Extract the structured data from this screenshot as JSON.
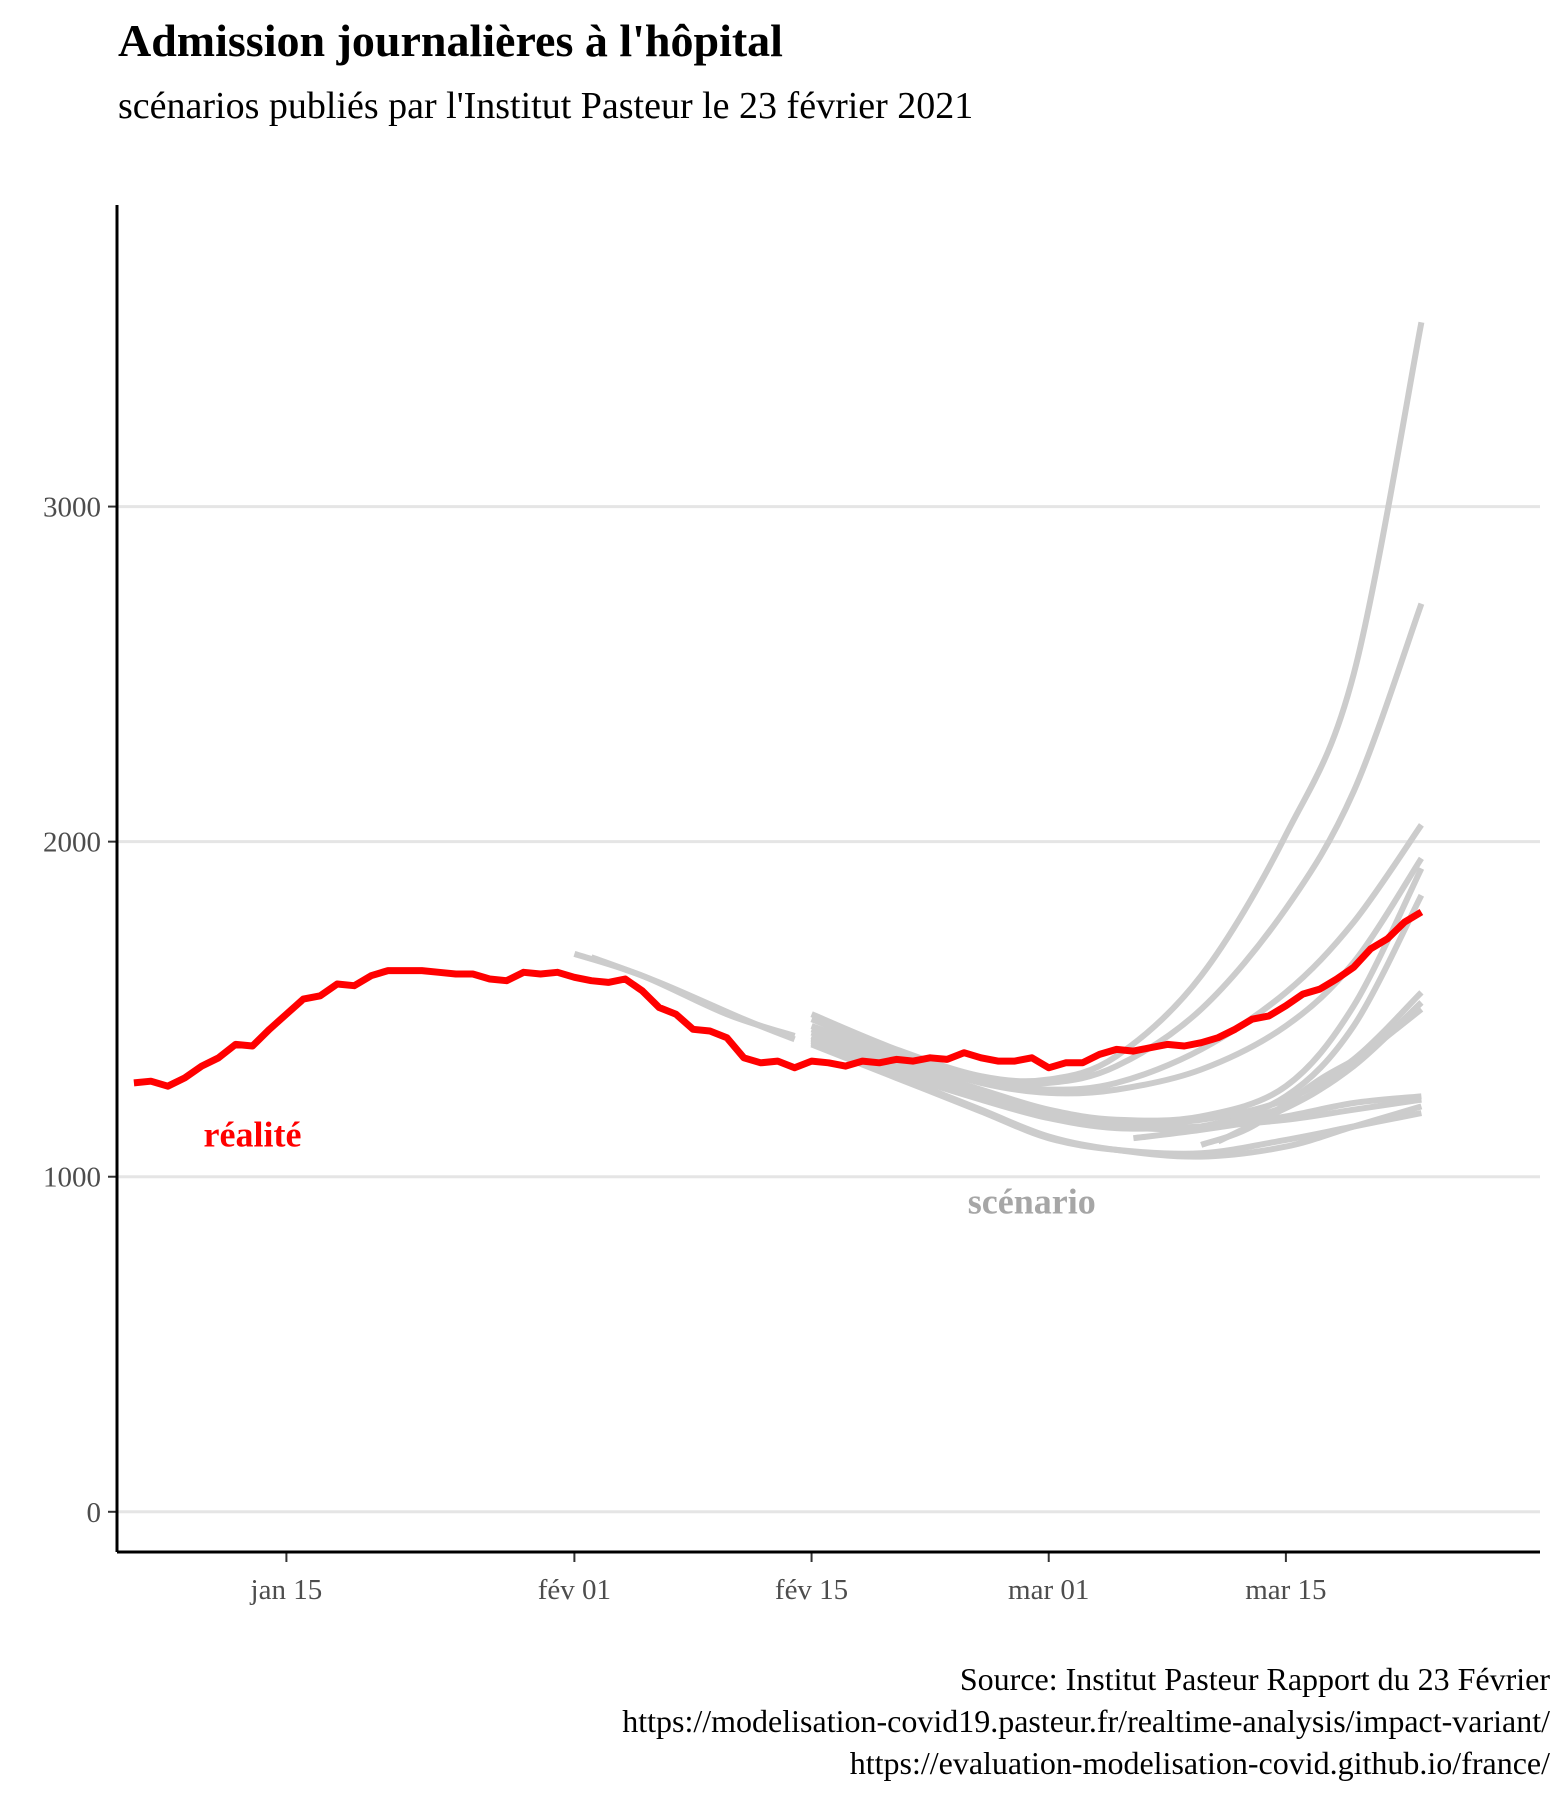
{
  "title": "Admission journalières à l'hôpital",
  "subtitle": "scénarios publiés par l'Institut Pasteur le 23 février 2021",
  "caption": [
    "Source: Institut Pasteur Rapport du 23 Février",
    "https://modelisation-covid19.pasteur.fr/realtime-analysis/impact-variant/",
    "https://evaluation-modelisation-covid.github.io/france/"
  ],
  "colors": {
    "reality": "#ff0000",
    "scenario": "#cccccc",
    "scenario_label": "#a6a6a6",
    "grid": "#e5e5e5",
    "axis": "#000000"
  },
  "chart_data": {
    "type": "line",
    "title": "Admission journalières à l'hôpital",
    "subtitle": "scénarios publiés par l'Institut Pasteur le 23 février 2021",
    "xlabel": "",
    "ylabel": "",
    "x_type": "date",
    "xlim": [
      "2021-01-05",
      "2021-03-30"
    ],
    "ylim": [
      -120,
      3900
    ],
    "x_ticks": [
      {
        "date": "2021-01-15",
        "label": "jan 15"
      },
      {
        "date": "2021-02-01",
        "label": "fév 01"
      },
      {
        "date": "2021-02-15",
        "label": "fév 15"
      },
      {
        "date": "2021-03-01",
        "label": "mar 01"
      },
      {
        "date": "2021-03-15",
        "label": "mar 15"
      }
    ],
    "y_ticks": [
      0,
      1000,
      2000,
      3000
    ],
    "grid": "horizontal",
    "annotations": [
      {
        "text": "réalité",
        "series": "reality",
        "date": "2021-01-13",
        "y": 1090
      },
      {
        "text": "scénario",
        "series": "scenario",
        "date": "2021-02-28",
        "y": 890
      }
    ],
    "reality": [
      [
        "2021-01-06",
        1280
      ],
      [
        "2021-01-07",
        1285
      ],
      [
        "2021-01-08",
        1270
      ],
      [
        "2021-01-09",
        1295
      ],
      [
        "2021-01-10",
        1330
      ],
      [
        "2021-01-11",
        1355
      ],
      [
        "2021-01-12",
        1395
      ],
      [
        "2021-01-13",
        1390
      ],
      [
        "2021-01-14",
        1440
      ],
      [
        "2021-01-15",
        1485
      ],
      [
        "2021-01-16",
        1530
      ],
      [
        "2021-01-17",
        1540
      ],
      [
        "2021-01-18",
        1575
      ],
      [
        "2021-01-19",
        1570
      ],
      [
        "2021-01-20",
        1600
      ],
      [
        "2021-01-21",
        1615
      ],
      [
        "2021-01-22",
        1615
      ],
      [
        "2021-01-23",
        1615
      ],
      [
        "2021-01-24",
        1610
      ],
      [
        "2021-01-25",
        1605
      ],
      [
        "2021-01-26",
        1605
      ],
      [
        "2021-01-27",
        1590
      ],
      [
        "2021-01-28",
        1585
      ],
      [
        "2021-01-29",
        1610
      ],
      [
        "2021-01-30",
        1605
      ],
      [
        "2021-01-31",
        1610
      ],
      [
        "2021-02-01",
        1595
      ],
      [
        "2021-02-02",
        1585
      ],
      [
        "2021-02-03",
        1580
      ],
      [
        "2021-02-04",
        1590
      ],
      [
        "2021-02-05",
        1555
      ],
      [
        "2021-02-06",
        1505
      ],
      [
        "2021-02-07",
        1485
      ],
      [
        "2021-02-08",
        1440
      ],
      [
        "2021-02-09",
        1435
      ],
      [
        "2021-02-10",
        1415
      ],
      [
        "2021-02-11",
        1355
      ],
      [
        "2021-02-12",
        1340
      ],
      [
        "2021-02-13",
        1345
      ],
      [
        "2021-02-14",
        1325
      ],
      [
        "2021-02-15",
        1345
      ],
      [
        "2021-02-16",
        1340
      ],
      [
        "2021-02-17",
        1330
      ],
      [
        "2021-02-18",
        1345
      ],
      [
        "2021-02-19",
        1340
      ],
      [
        "2021-02-20",
        1350
      ],
      [
        "2021-02-21",
        1345
      ],
      [
        "2021-02-22",
        1355
      ],
      [
        "2021-02-23",
        1350
      ],
      [
        "2021-02-24",
        1370
      ],
      [
        "2021-02-25",
        1355
      ],
      [
        "2021-02-26",
        1345
      ],
      [
        "2021-02-27",
        1345
      ],
      [
        "2021-02-28",
        1355
      ],
      [
        "2021-03-01",
        1325
      ],
      [
        "2021-03-02",
        1340
      ],
      [
        "2021-03-03",
        1340
      ],
      [
        "2021-03-04",
        1365
      ],
      [
        "2021-03-05",
        1380
      ],
      [
        "2021-03-06",
        1375
      ],
      [
        "2021-03-07",
        1385
      ],
      [
        "2021-03-08",
        1395
      ],
      [
        "2021-03-09",
        1390
      ],
      [
        "2021-03-10",
        1400
      ],
      [
        "2021-03-11",
        1415
      ],
      [
        "2021-03-12",
        1440
      ],
      [
        "2021-03-13",
        1470
      ],
      [
        "2021-03-14",
        1480
      ],
      [
        "2021-03-15",
        1510
      ],
      [
        "2021-03-16",
        1545
      ],
      [
        "2021-03-17",
        1560
      ],
      [
        "2021-03-18",
        1590
      ],
      [
        "2021-03-19",
        1625
      ],
      [
        "2021-03-20",
        1680
      ],
      [
        "2021-03-21",
        1710
      ],
      [
        "2021-03-22",
        1760
      ],
      [
        "2021-03-23",
        1790
      ]
    ],
    "scenarios": [
      {
        "points": [
          [
            "2021-02-01",
            1665
          ],
          [
            "2021-02-05",
            1600
          ],
          [
            "2021-02-10",
            1485
          ],
          [
            "2021-02-14",
            1420
          ]
        ]
      },
      {
        "points": [
          [
            "2021-02-02",
            1655
          ],
          [
            "2021-02-06",
            1580
          ],
          [
            "2021-02-11",
            1470
          ],
          [
            "2021-02-14",
            1410
          ]
        ]
      },
      {
        "points": [
          [
            "2021-02-15",
            1485
          ],
          [
            "2021-02-20",
            1380
          ],
          [
            "2021-02-25",
            1300
          ],
          [
            "2021-03-01",
            1290
          ],
          [
            "2021-03-05",
            1360
          ],
          [
            "2021-03-10",
            1600
          ],
          [
            "2021-03-15",
            2020
          ],
          [
            "2021-03-19",
            2500
          ],
          [
            "2021-03-23",
            3550
          ]
        ]
      },
      {
        "points": [
          [
            "2021-02-15",
            1470
          ],
          [
            "2021-02-20",
            1370
          ],
          [
            "2021-02-25",
            1290
          ],
          [
            "2021-03-01",
            1280
          ],
          [
            "2021-03-05",
            1330
          ],
          [
            "2021-03-10",
            1500
          ],
          [
            "2021-03-15",
            1800
          ],
          [
            "2021-03-19",
            2150
          ],
          [
            "2021-03-23",
            2710
          ]
        ]
      },
      {
        "points": [
          [
            "2021-02-15",
            1450
          ],
          [
            "2021-02-20",
            1360
          ],
          [
            "2021-02-25",
            1285
          ],
          [
            "2021-03-01",
            1260
          ],
          [
            "2021-03-05",
            1280
          ],
          [
            "2021-03-10",
            1380
          ],
          [
            "2021-03-15",
            1550
          ],
          [
            "2021-03-19",
            1760
          ],
          [
            "2021-03-23",
            2050
          ]
        ]
      },
      {
        "points": [
          [
            "2021-02-15",
            1440
          ],
          [
            "2021-02-20",
            1355
          ],
          [
            "2021-02-25",
            1280
          ],
          [
            "2021-03-01",
            1250
          ],
          [
            "2021-03-05",
            1260
          ],
          [
            "2021-03-10",
            1320
          ],
          [
            "2021-03-15",
            1450
          ],
          [
            "2021-03-19",
            1640
          ],
          [
            "2021-03-23",
            1950
          ]
        ]
      },
      {
        "points": [
          [
            "2021-02-15",
            1430
          ],
          [
            "2021-02-20",
            1340
          ],
          [
            "2021-02-25",
            1260
          ],
          [
            "2021-03-01",
            1200
          ],
          [
            "2021-03-05",
            1170
          ],
          [
            "2021-03-10",
            1180
          ],
          [
            "2021-03-15",
            1270
          ],
          [
            "2021-03-19",
            1510
          ],
          [
            "2021-03-23",
            1920
          ]
        ]
      },
      {
        "points": [
          [
            "2021-02-15",
            1420
          ],
          [
            "2021-02-20",
            1330
          ],
          [
            "2021-02-25",
            1250
          ],
          [
            "2021-03-01",
            1180
          ],
          [
            "2021-03-05",
            1150
          ],
          [
            "2021-03-10",
            1150
          ],
          [
            "2021-03-15",
            1240
          ],
          [
            "2021-03-19",
            1450
          ],
          [
            "2021-03-23",
            1840
          ]
        ]
      },
      {
        "points": [
          [
            "2021-02-15",
            1415
          ],
          [
            "2021-02-20",
            1320
          ],
          [
            "2021-02-25",
            1240
          ],
          [
            "2021-03-01",
            1190
          ],
          [
            "2021-03-05",
            1160
          ],
          [
            "2021-03-10",
            1170
          ],
          [
            "2021-03-15",
            1230
          ],
          [
            "2021-03-19",
            1350
          ],
          [
            "2021-03-23",
            1550
          ]
        ]
      },
      {
        "points": [
          [
            "2021-02-15",
            1410
          ],
          [
            "2021-02-20",
            1315
          ],
          [
            "2021-02-25",
            1235
          ],
          [
            "2021-03-01",
            1180
          ],
          [
            "2021-03-05",
            1150
          ],
          [
            "2021-03-10",
            1150
          ],
          [
            "2021-03-15",
            1210
          ],
          [
            "2021-03-19",
            1330
          ],
          [
            "2021-03-23",
            1520
          ]
        ]
      },
      {
        "points": [
          [
            "2021-02-15",
            1405
          ],
          [
            "2021-02-20",
            1310
          ],
          [
            "2021-02-25",
            1230
          ],
          [
            "2021-03-01",
            1175
          ],
          [
            "2021-03-05",
            1145
          ],
          [
            "2021-03-10",
            1150
          ],
          [
            "2021-03-15",
            1170
          ],
          [
            "2021-03-19",
            1200
          ],
          [
            "2021-03-23",
            1230
          ]
        ]
      },
      {
        "points": [
          [
            "2021-02-15",
            1400
          ],
          [
            "2021-02-20",
            1300
          ],
          [
            "2021-02-25",
            1200
          ],
          [
            "2021-03-01",
            1120
          ],
          [
            "2021-03-05",
            1080
          ],
          [
            "2021-03-10",
            1060
          ],
          [
            "2021-03-15",
            1090
          ],
          [
            "2021-03-19",
            1150
          ],
          [
            "2021-03-23",
            1210
          ]
        ]
      },
      {
        "points": [
          [
            "2021-02-15",
            1395
          ],
          [
            "2021-02-20",
            1295
          ],
          [
            "2021-02-25",
            1195
          ],
          [
            "2021-03-01",
            1115
          ],
          [
            "2021-03-05",
            1080
          ],
          [
            "2021-03-10",
            1070
          ],
          [
            "2021-03-15",
            1110
          ],
          [
            "2021-03-19",
            1150
          ],
          [
            "2021-03-23",
            1190
          ]
        ]
      },
      {
        "points": [
          [
            "2021-03-06",
            1115
          ],
          [
            "2021-03-10",
            1140
          ],
          [
            "2021-03-15",
            1180
          ],
          [
            "2021-03-19",
            1220
          ],
          [
            "2021-03-23",
            1240
          ]
        ]
      },
      {
        "points": [
          [
            "2021-03-10",
            1095
          ],
          [
            "2021-03-13",
            1150
          ],
          [
            "2021-03-17",
            1290
          ],
          [
            "2021-03-20",
            1380
          ],
          [
            "2021-03-23",
            1520
          ]
        ]
      },
      {
        "points": [
          [
            "2021-03-11",
            1105
          ],
          [
            "2021-03-14",
            1180
          ],
          [
            "2021-03-17",
            1260
          ],
          [
            "2021-03-20",
            1380
          ],
          [
            "2021-03-23",
            1500
          ]
        ]
      }
    ]
  }
}
